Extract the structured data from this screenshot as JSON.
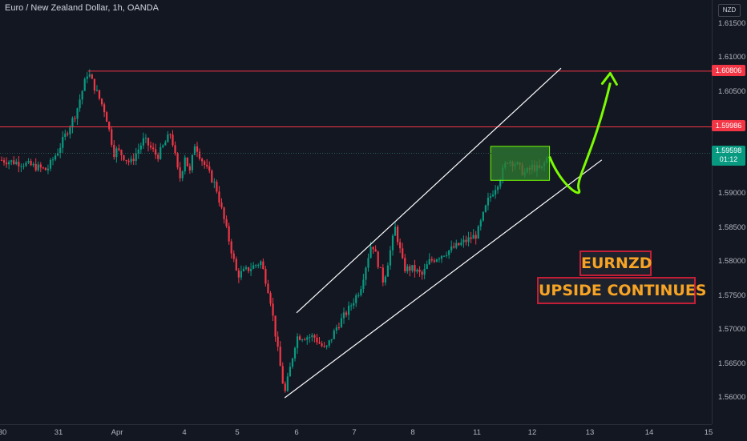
{
  "header": {
    "symbol": "Euro / New Zealand Dollar, 1h, OANDA"
  },
  "price_scale": {
    "currency": "NZD"
  },
  "badges": {
    "resistance_1": "1.60806",
    "resistance_2": "1.59986",
    "current_price": "1.59598",
    "countdown": "01:12"
  },
  "callouts": {
    "line1": "EURNZD",
    "line2": "UPSIDE CONTINUES"
  },
  "colors": {
    "background": "#131722",
    "bull": "#089981",
    "bear": "#f23645",
    "horizontal_line": "#f23645",
    "channel": "#ffffff",
    "projection": "#7cfc00",
    "box_fill": "#2e7d32",
    "box_border": "#76ff03",
    "callout_text": "#f7a425"
  },
  "chart_data": {
    "type": "candlestick",
    "title": "Euro / New Zealand Dollar, 1h, OANDA",
    "y_axis": {
      "side": "right",
      "ticks": [
        "1.61500",
        "1.61000",
        "1.60500",
        "1.60000",
        "1.59500",
        "1.59000",
        "1.58500",
        "1.58000",
        "1.57500",
        "1.57000",
        "1.56500",
        "1.56000"
      ],
      "range": [
        1.557,
        1.617
      ]
    },
    "x_axis": {
      "ticks": [
        "30",
        "31",
        "Apr",
        "4",
        "5",
        "6",
        "7",
        "8",
        "11",
        "12",
        "13",
        "14",
        "15"
      ]
    },
    "anchors_close": [
      [
        "30",
        1.595
      ],
      [
        "30.4",
        1.5945
      ],
      [
        "30.8",
        1.5935
      ],
      [
        "31",
        1.5965
      ],
      [
        "31.3",
        1.602
      ],
      [
        "31.5",
        1.608
      ],
      [
        "31.8",
        1.602
      ],
      [
        "31.95",
        1.596
      ],
      [
        "Apr",
        1.5965
      ],
      [
        "1.2",
        1.5945
      ],
      [
        "1.4",
        1.598
      ],
      [
        "1.6",
        1.5955
      ],
      [
        "1.8",
        1.599
      ],
      [
        "1.9",
        1.5935
      ],
      [
        "1.95",
        1.592
      ],
      [
        "4",
        1.596
      ],
      [
        "4.1",
        1.593
      ],
      [
        "4.2",
        1.5975
      ],
      [
        "4.3",
        1.5955
      ],
      [
        "4.6",
        1.591
      ],
      [
        "4.85",
        1.583
      ],
      [
        "5",
        1.578
      ],
      [
        "5.2",
        1.579
      ],
      [
        "5.4",
        1.58
      ],
      [
        "5.55",
        1.575
      ],
      [
        "5.7",
        1.566
      ],
      [
        "5.8",
        1.5605
      ],
      [
        "6",
        1.569
      ],
      [
        "6.3",
        1.569
      ],
      [
        "6.5",
        1.567
      ],
      [
        "6.7",
        1.5705
      ],
      [
        "6.9",
        1.573
      ],
      [
        "7.1",
        1.576
      ],
      [
        "7.3",
        1.583
      ],
      [
        "7.5",
        1.577
      ],
      [
        "7.7",
        1.585
      ],
      [
        "7.85",
        1.579
      ],
      [
        "8",
        1.579
      ],
      [
        "8.15",
        1.578
      ],
      [
        "8.25",
        1.58
      ],
      [
        "11",
        1.584
      ],
      [
        "11.2",
        1.589
      ],
      [
        "11.4",
        1.592
      ],
      [
        "11.55",
        1.595
      ],
      [
        "11.7",
        1.5945
      ],
      [
        "11.85",
        1.593
      ],
      [
        "11.95",
        1.5935
      ],
      [
        "12",
        1.594
      ],
      [
        "12.15",
        1.5935
      ],
      [
        "12.3",
        1.596
      ]
    ],
    "horizontal_lines": [
      1.60806,
      1.59986
    ],
    "current_price": 1.59598,
    "channel": {
      "upper": [
        [
          "6",
          1.5725
        ],
        [
          "12.5",
          1.6085
        ]
      ],
      "lower": [
        [
          "5.8",
          1.56
        ],
        [
          "13.2",
          1.595
        ]
      ]
    },
    "consolidation_box": {
      "x": [
        "11.25",
        "12.3"
      ],
      "y": [
        1.592,
        1.597
      ]
    },
    "projection": [
      [
        "12.3",
        1.5955
      ],
      [
        "12.6",
        1.591
      ],
      [
        "13",
        1.596
      ],
      [
        "13.1",
        1.608
      ]
    ]
  }
}
